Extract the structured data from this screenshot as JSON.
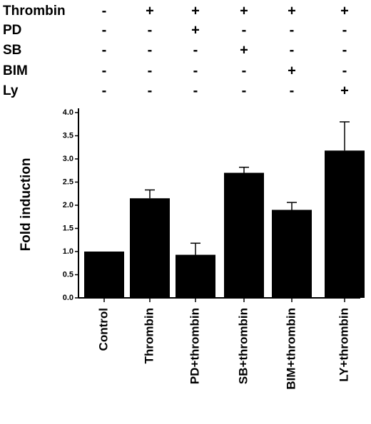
{
  "treatment_table": {
    "rows": [
      {
        "label": "Thrombin",
        "signs": [
          "-",
          "+",
          "+",
          "+",
          "+",
          "+"
        ]
      },
      {
        "label": "PD",
        "signs": [
          "-",
          "-",
          "+",
          "-",
          "-",
          "-"
        ]
      },
      {
        "label": "SB",
        "signs": [
          "-",
          "-",
          "-",
          "+",
          "-",
          "-"
        ]
      },
      {
        "label": "BIM",
        "signs": [
          "-",
          "-",
          "-",
          "-",
          "+",
          "-"
        ]
      },
      {
        "label": "Ly",
        "signs": [
          "-",
          "-",
          "-",
          "-",
          "-",
          "+"
        ]
      }
    ]
  },
  "chart_data": {
    "type": "bar",
    "categories": [
      "Control",
      "Thrombin",
      "PD+thrombin",
      "SB+thrombin",
      "BIM+thrombin",
      "LY+thrombin"
    ],
    "series": [
      {
        "values": [
          1.0,
          2.15,
          0.93,
          2.7,
          1.9,
          3.18
        ],
        "errors": [
          0,
          0.18,
          0.25,
          0.12,
          0.16,
          0.62
        ]
      }
    ],
    "title": "",
    "xlabel": "",
    "ylabel": "Fold induction",
    "ylim": [
      0,
      4.0
    ],
    "yticks": [
      "0.0",
      "0.5",
      "1.0",
      "1.5",
      "2.0",
      "2.5",
      "3.0",
      "3.5",
      "4.0"
    ],
    "bar_color": "#000000",
    "grid": false,
    "legend": "none"
  }
}
